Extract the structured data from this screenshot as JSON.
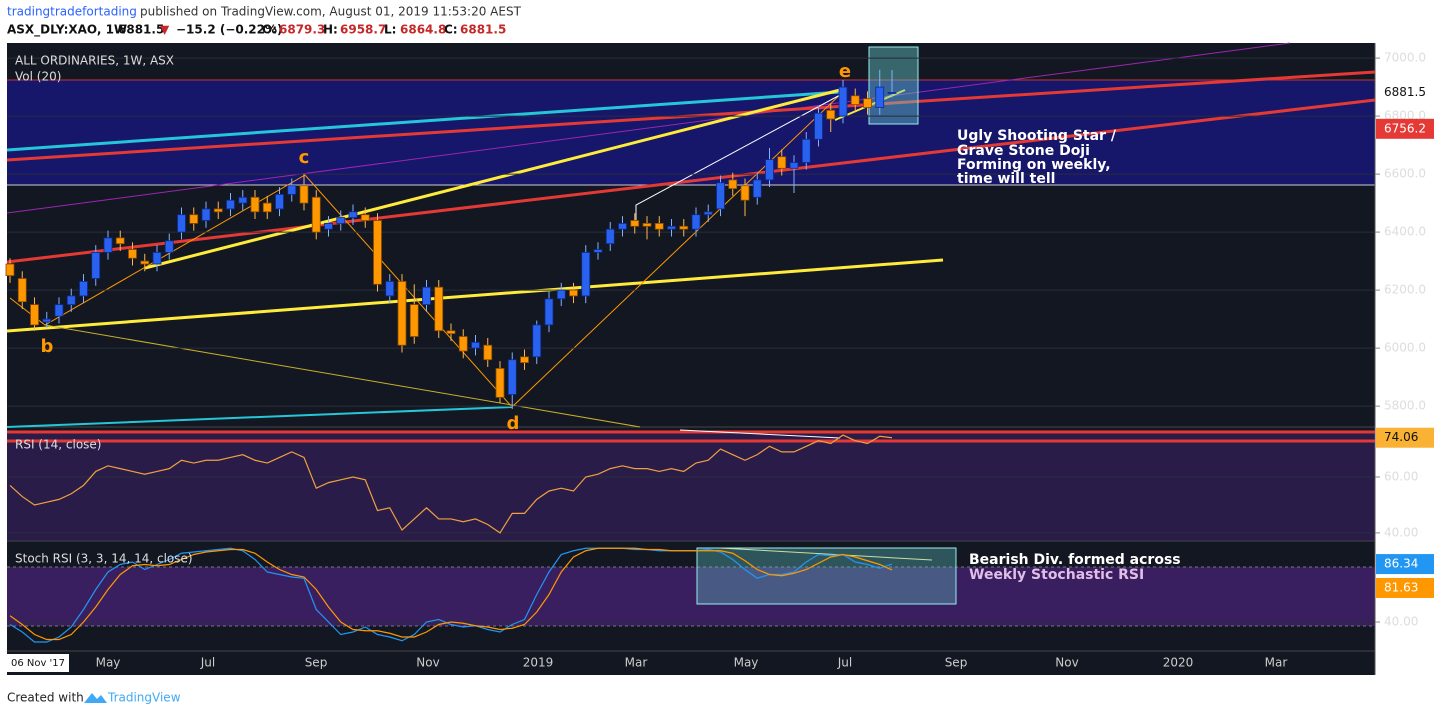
{
  "header": {
    "author": "tradingtradefortading",
    "published": "published on TradingView.com, August 01, 2019 11:53:20 AEST",
    "symbol": "ASX_DLY:XAO, 1W",
    "arrow": "▼",
    "change": "−15.2 (−0.22%)",
    "o": "O:",
    "h": "H:",
    "l": "L:",
    "c": "C:"
  },
  "chart_data": [
    {
      "type": "candlestick",
      "title": "ALL ORDINARIES, 1W, ASX",
      "subtitle": "Vol (20)",
      "up_color": "#2a62f0",
      "down_color": "#ff9800",
      "open": [
        6290,
        6240,
        6150,
        6090,
        6110,
        6150,
        6180,
        6240,
        6330,
        6380,
        6340,
        6300,
        6290,
        6330,
        6400,
        6460,
        6440,
        6480,
        6480,
        6500,
        6520,
        6500,
        6480,
        6530,
        6560,
        6520,
        6410,
        6430,
        6450,
        6460,
        6440,
        6180,
        6230,
        6150,
        6150,
        6210,
        6060,
        6040,
        6000,
        6010,
        5930,
        5840,
        5970,
        5970,
        6080,
        6170,
        6200,
        6180,
        6330,
        6360,
        6410,
        6440,
        6430,
        6430,
        6410,
        6420,
        6410,
        6460,
        6480,
        6580,
        6560,
        6520,
        6580,
        6660,
        6620,
        6640,
        6720,
        6820,
        6800,
        6870,
        6860,
        6830,
        6879.3
      ],
      "high": [
        6310,
        6265,
        6175,
        6125,
        6175,
        6205,
        6255,
        6355,
        6405,
        6405,
        6365,
        6325,
        6355,
        6395,
        6485,
        6485,
        6505,
        6505,
        6535,
        6545,
        6545,
        6525,
        6555,
        6585,
        6600,
        6545,
        6455,
        6475,
        6495,
        6485,
        6465,
        6255,
        6255,
        6220,
        6235,
        6235,
        6085,
        6065,
        6045,
        6035,
        5955,
        5985,
        5995,
        6095,
        6195,
        6225,
        6225,
        6355,
        6365,
        6435,
        6455,
        6465,
        6455,
        6455,
        6445,
        6445,
        6485,
        6495,
        6595,
        6605,
        6585,
        6605,
        6690,
        6685,
        6665,
        6745,
        6835,
        6845,
        6925,
        6895,
        6885,
        6960,
        6958.7
      ],
      "low": [
        6225,
        6135,
        6060,
        6070,
        6085,
        6125,
        6155,
        6215,
        6305,
        6335,
        6285,
        6265,
        6265,
        6305,
        6375,
        6405,
        6415,
        6445,
        6455,
        6475,
        6445,
        6445,
        6455,
        6505,
        6475,
        6375,
        6385,
        6405,
        6425,
        6415,
        6195,
        6155,
        5985,
        6015,
        6125,
        6035,
        6025,
        5965,
        5975,
        5935,
        5810,
        5790,
        5925,
        5945,
        6055,
        6145,
        6155,
        6155,
        6305,
        6335,
        6385,
        6395,
        6375,
        6385,
        6385,
        6385,
        6385,
        6435,
        6455,
        6525,
        6455,
        6495,
        6555,
        6595,
        6535,
        6615,
        6695,
        6745,
        6775,
        6815,
        6805,
        6805,
        6864.8
      ],
      "close": [
        6250,
        6160,
        6080,
        6100,
        6150,
        6180,
        6230,
        6330,
        6380,
        6360,
        6310,
        6290,
        6330,
        6370,
        6460,
        6430,
        6480,
        6470,
        6510,
        6520,
        6470,
        6470,
        6530,
        6560,
        6500,
        6400,
        6430,
        6450,
        6470,
        6440,
        6220,
        6230,
        6010,
        6040,
        6210,
        6060,
        6050,
        5990,
        6020,
        5960,
        5830,
        5960,
        5950,
        6080,
        6170,
        6200,
        6180,
        6330,
        6340,
        6410,
        6430,
        6420,
        6420,
        6410,
        6420,
        6410,
        6460,
        6470,
        6570,
        6550,
        6510,
        6580,
        6650,
        6620,
        6640,
        6720,
        6810,
        6790,
        6900,
        6840,
        6830,
        6900,
        6881.5
      ],
      "ylim": [
        5728,
        7052
      ],
      "yticks": [
        {
          "value": 5800,
          "label": "5800.0"
        },
        {
          "value": 6000,
          "label": "6000.0"
        },
        {
          "value": 6200,
          "label": "6200.0"
        },
        {
          "value": 6400,
          "label": "6400.0"
        },
        {
          "value": 6600,
          "label": "6600.0"
        },
        {
          "value": 6800,
          "label": "6800.0"
        },
        {
          "value": 7000,
          "label": "7000.0"
        }
      ],
      "level": 6756.2,
      "annotations": [
        "b",
        "c",
        "d",
        "e",
        "Ugly Shooting Star  /",
        "Grave Stone Doji",
        "Forming on weekly,",
        "time will tell"
      ]
    },
    {
      "type": "line",
      "title": "RSI (14, close)",
      "color": "#f0a040",
      "values": [
        57,
        53,
        50,
        51,
        52,
        54,
        57,
        62,
        64,
        63,
        62,
        61,
        62,
        63,
        66,
        65,
        66,
        66,
        67,
        68,
        66,
        65,
        67,
        69,
        67,
        56,
        58,
        59,
        60,
        59,
        48,
        49,
        41,
        45,
        49,
        45,
        45,
        44,
        45,
        43,
        40,
        47,
        47,
        52,
        55,
        56,
        55,
        60,
        61,
        63,
        64,
        63,
        63,
        62,
        63,
        62,
        65,
        66,
        70,
        68,
        66,
        68,
        71,
        69,
        69,
        71,
        73,
        72,
        75,
        73,
        72,
        74.6,
        74.06
      ],
      "ylim": [
        37.1,
        77.9
      ],
      "yticks": [
        {
          "value": 40,
          "label": "40.00"
        },
        {
          "value": 60,
          "label": "60.00"
        }
      ]
    },
    {
      "type": "line",
      "title": "Stoch RSI (3, 3, 14, 14, close)",
      "series": [
        {
          "color": "#2196f3",
          "values": [
            38,
            32,
            24,
            24,
            28,
            36,
            50,
            66,
            80,
            86,
            88,
            82,
            86,
            90,
            95,
            96,
            97,
            98,
            99,
            97,
            90,
            80,
            78,
            76,
            75,
            50,
            40,
            30,
            32,
            36,
            30,
            28,
            25,
            30,
            40,
            42,
            38,
            36,
            37,
            34,
            32,
            38,
            42,
            62,
            80,
            94,
            97,
            99,
            99,
            99,
            99,
            98,
            98,
            97,
            97,
            97,
            97,
            98,
            96,
            90,
            82,
            75,
            78,
            78,
            80,
            88,
            94,
            93,
            94,
            88,
            86,
            83,
            86.34
          ]
        },
        {
          "color": "#ff9800",
          "values": [
            45,
            38,
            30,
            26,
            26,
            30,
            40,
            52,
            66,
            78,
            85,
            86,
            85,
            86,
            90,
            94,
            96,
            97,
            98,
            98,
            95,
            88,
            82,
            78,
            76,
            66,
            52,
            40,
            34,
            33,
            33,
            31,
            28,
            28,
            32,
            38,
            40,
            39,
            37,
            36,
            34,
            35,
            38,
            48,
            62,
            80,
            92,
            97,
            99,
            99,
            99,
            99,
            98,
            98,
            97,
            97,
            97,
            97,
            97,
            95,
            89,
            82,
            78,
            77,
            79,
            82,
            87,
            92,
            94,
            92,
            89,
            86,
            81.63
          ]
        }
      ],
      "ylim": [
        16.8,
        104.8
      ],
      "yticks": [
        {
          "value": 40,
          "label": "40.00"
        }
      ],
      "annotations": [
        "Bearish Div. formed across",
        "Weekly Stochastic RSI"
      ]
    }
  ],
  "time_axis": [
    "06 Nov '17",
    "May",
    "Jul",
    "Sep",
    "Nov",
    "2019",
    "Mar",
    "May",
    "Jul",
    "Sep",
    "Nov",
    "2020",
    "Mar"
  ],
  "footer": {
    "created": "Created with",
    "brand": "TradingView"
  }
}
